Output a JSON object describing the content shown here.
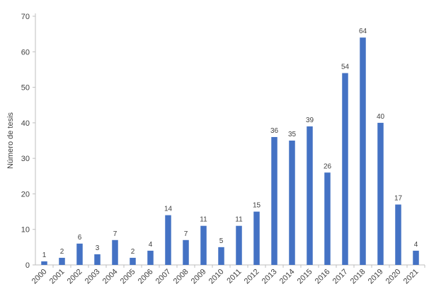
{
  "chart_data": {
    "type": "bar",
    "categories": [
      "2000",
      "2001",
      "2002",
      "2003",
      "2004",
      "2005",
      "2006",
      "2007",
      "2008",
      "2009",
      "2010",
      "2011",
      "2012",
      "2013",
      "2014",
      "2015",
      "2016",
      "2017",
      "2018",
      "2019",
      "2020",
      "2021"
    ],
    "values": [
      1,
      2,
      6,
      3,
      7,
      2,
      4,
      14,
      7,
      11,
      5,
      11,
      15,
      36,
      35,
      39,
      26,
      54,
      64,
      40,
      17,
      4
    ],
    "title": "",
    "xlabel": "",
    "ylabel": "Número de tesis",
    "ylim": [
      0,
      70
    ],
    "yticks": [
      0,
      10,
      20,
      30,
      40,
      50,
      60,
      70
    ],
    "grid": false,
    "data_labels": true,
    "bar_color": "#4472C4",
    "axis_color": "#BFBFBF"
  }
}
